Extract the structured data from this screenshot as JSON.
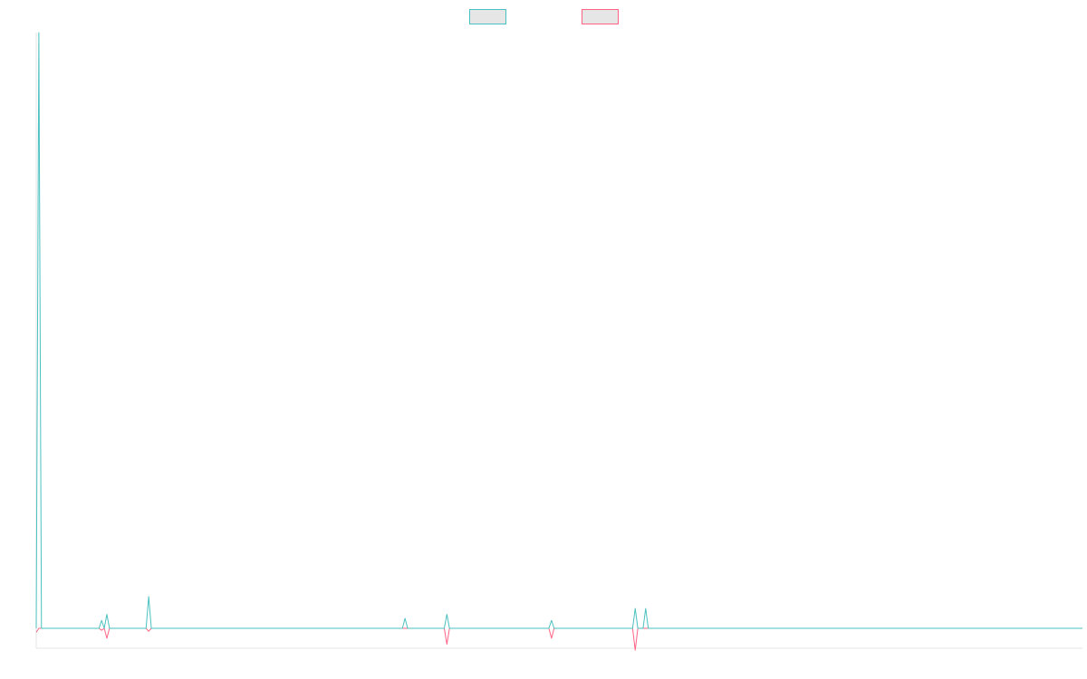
{
  "chart_data": {
    "type": "line",
    "title": "",
    "xlabel": "",
    "ylabel": "",
    "legend_position": "top-center",
    "grid": false,
    "x_count": 401,
    "ylim": [
      -1.5,
      30
    ],
    "series": [
      {
        "name": "",
        "color": "#4bc0c0",
        "fill": "#e6e6e6",
        "points": [
          [
            0,
            0
          ],
          [
            1,
            30
          ],
          [
            2,
            0
          ],
          [
            24,
            0
          ],
          [
            25,
            0.4
          ],
          [
            26,
            0
          ],
          [
            27,
            0.7
          ],
          [
            28,
            0
          ],
          [
            42,
            0
          ],
          [
            43,
            1.6
          ],
          [
            44,
            0
          ],
          [
            140,
            0
          ],
          [
            141,
            0.5
          ],
          [
            142,
            0
          ],
          [
            156,
            0
          ],
          [
            157,
            0.7
          ],
          [
            158,
            0
          ],
          [
            196,
            0
          ],
          [
            197,
            0.4
          ],
          [
            198,
            0
          ],
          [
            228,
            0
          ],
          [
            229,
            1.0
          ],
          [
            230,
            0
          ],
          [
            232,
            0
          ],
          [
            233,
            1.0
          ],
          [
            234,
            0
          ],
          [
            400,
            0
          ]
        ]
      },
      {
        "name": "",
        "color": "#ff6384",
        "fill": "#e6e6e6",
        "points": [
          [
            0,
            -0.2
          ],
          [
            1,
            0
          ],
          [
            24,
            0
          ],
          [
            25,
            -0.1
          ],
          [
            26,
            0
          ],
          [
            27,
            -0.5
          ],
          [
            28,
            0
          ],
          [
            42,
            0
          ],
          [
            43,
            -0.15
          ],
          [
            44,
            0
          ],
          [
            156,
            0
          ],
          [
            157,
            -0.8
          ],
          [
            158,
            0
          ],
          [
            196,
            0
          ],
          [
            197,
            -0.5
          ],
          [
            198,
            0
          ],
          [
            228,
            0
          ],
          [
            229,
            -1.1
          ],
          [
            230,
            0
          ],
          [
            400,
            0
          ]
        ]
      }
    ]
  }
}
